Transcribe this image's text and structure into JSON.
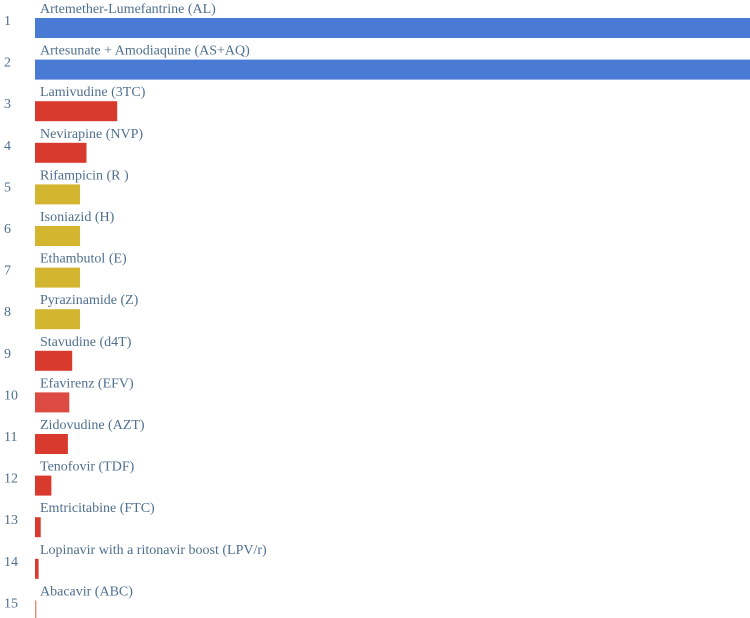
{
  "chart_data": {
    "type": "bar",
    "orientation": "horizontal",
    "categories": [
      "Artemether-Lumefantrine (AL)",
      "Artesunate + Amodiaquine (AS+AQ)",
      "Lamivudine (3TC)",
      "Nevirapine (NVP)",
      "Rifampicin (R )",
      "Isoniazid (H)",
      "Ethambutol (E)",
      "Pyrazinamide (Z)",
      "Stavudine (d4T)",
      "Efavirenz (EFV)",
      "Zidovudine (AZT)",
      "Tenofovir (TDF)",
      "Emtricitabine (FTC)",
      "Lopinavir with a ritonavir boost (LPV/r)",
      "Abacavir (ABC)"
    ],
    "ranks": [
      "1",
      "2",
      "3",
      "4",
      "5",
      "6",
      "7",
      "8",
      "9",
      "10",
      "11",
      "12",
      "13",
      "14",
      "15"
    ],
    "values": [
      100,
      100,
      11.5,
      7.2,
      6.3,
      6.3,
      6.3,
      6.3,
      5.2,
      4.8,
      4.6,
      2.3,
      0.8,
      0.5,
      0.2
    ],
    "xlim": [
      0,
      100
    ],
    "colors": [
      "#4a7bd4",
      "#4a7bd4",
      "#d93a2e",
      "#d93a2e",
      "#d4b52f",
      "#d4b52f",
      "#d4b52f",
      "#d4b52f",
      "#d93a2e",
      "#dc4a42",
      "#d93a2e",
      "#d93a2e",
      "#d93a2e",
      "#d93a2e",
      "#e38a80"
    ],
    "title": "",
    "xlabel": "",
    "ylabel": "",
    "grid": false,
    "legend": "none"
  }
}
